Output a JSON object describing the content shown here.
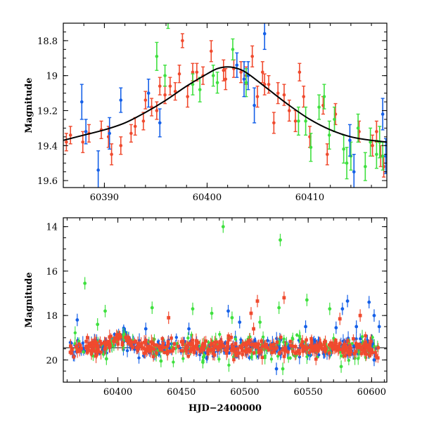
{
  "chart_data": [
    {
      "type": "scatter",
      "panel": "top",
      "title": "",
      "xlabel": "",
      "ylabel": "Magnitude",
      "xlim": [
        60386,
        60417.5
      ],
      "ylim": [
        19.64,
        18.7
      ],
      "y_inverted": true,
      "grid": false,
      "x_ticks": [
        60390,
        60400,
        60410
      ],
      "y_ticks": [
        18.8,
        19,
        19.2,
        19.4,
        19.6
      ],
      "x_tick_labels": [
        "60390",
        "60400",
        "60410"
      ],
      "y_tick_labels": [
        "18.8",
        "19",
        "19.2",
        "19.4",
        "19.6"
      ],
      "colors": {
        "red": "#f04a2e",
        "green": "#3fe03f",
        "blue": "#1560e8",
        "model": "#000000"
      },
      "model_curve": {
        "x": [
          60386,
          60388,
          60390,
          60392,
          60394,
          60396,
          60398,
          60400,
          60401,
          60402,
          60403,
          60404,
          60406,
          60408,
          60410,
          60412,
          60414,
          60416,
          60417.5
        ],
        "y": [
          19.37,
          19.34,
          19.31,
          19.27,
          19.21,
          19.14,
          19.06,
          18.99,
          18.96,
          18.95,
          18.96,
          18.99,
          19.08,
          19.17,
          19.25,
          19.31,
          19.35,
          19.37,
          19.38
        ]
      },
      "series": [
        {
          "color": "red",
          "points": [
            [
              60386.3,
              19.38,
              0.05
            ],
            [
              60386.7,
              19.34,
              0.05
            ],
            [
              60387.9,
              19.38,
              0.06
            ],
            [
              60388.5,
              19.33,
              0.05
            ],
            [
              60389.7,
              19.31,
              0.05
            ],
            [
              60390.4,
              19.35,
              0.06
            ],
            [
              60390.7,
              19.45,
              0.06
            ],
            [
              60391.6,
              19.4,
              0.05
            ],
            [
              60392.6,
              19.33,
              0.05
            ],
            [
              60393.0,
              19.29,
              0.05
            ],
            [
              60393.8,
              19.26,
              0.05
            ],
            [
              60394.0,
              19.14,
              0.05
            ],
            [
              60394.6,
              19.18,
              0.05
            ],
            [
              60395.1,
              19.2,
              0.05
            ],
            [
              60395.4,
              19.06,
              0.05
            ],
            [
              60395.9,
              19.11,
              0.05
            ],
            [
              60396.4,
              19.06,
              0.05
            ],
            [
              60396.9,
              19.09,
              0.05
            ],
            [
              60397.3,
              18.99,
              0.05
            ],
            [
              60397.6,
              18.8,
              0.04
            ],
            [
              60398.1,
              19.12,
              0.06
            ],
            [
              60398.6,
              18.98,
              0.05
            ],
            [
              60399.0,
              18.98,
              0.05
            ],
            [
              60399.6,
              19.0,
              0.05
            ],
            [
              60400.4,
              18.86,
              0.06
            ],
            [
              60401.6,
              18.97,
              0.06
            ],
            [
              60401.8,
              19.02,
              0.06
            ],
            [
              60402.6,
              18.96,
              0.05
            ],
            [
              60403.3,
              18.98,
              0.06
            ],
            [
              60403.8,
              19.0,
              0.05
            ],
            [
              60404.4,
              18.89,
              0.06
            ],
            [
              60404.9,
              19.12,
              0.06
            ],
            [
              60405.4,
              18.98,
              0.06
            ],
            [
              60405.6,
              19.05,
              0.06
            ],
            [
              60406.0,
              19.05,
              0.05
            ],
            [
              60406.5,
              19.27,
              0.06
            ],
            [
              60406.9,
              19.1,
              0.06
            ],
            [
              60407.5,
              19.11,
              0.06
            ],
            [
              60408.0,
              19.2,
              0.06
            ],
            [
              60408.6,
              19.26,
              0.06
            ],
            [
              60409.0,
              18.98,
              0.05
            ],
            [
              60409.4,
              19.12,
              0.06
            ],
            [
              60410.0,
              19.35,
              0.06
            ],
            [
              60411.3,
              19.17,
              0.05
            ],
            [
              60411.7,
              19.45,
              0.06
            ],
            [
              60412.5,
              19.22,
              0.06
            ],
            [
              60414.8,
              19.32,
              0.06
            ],
            [
              60416.1,
              19.4,
              0.06
            ],
            [
              60416.5,
              19.32,
              0.06
            ],
            [
              60416.9,
              19.46,
              0.06
            ],
            [
              60417.2,
              19.52,
              0.06
            ]
          ]
        },
        {
          "color": "green",
          "points": [
            [
              60395.1,
              18.89,
              0.08
            ],
            [
              60395.9,
              19.0,
              0.06
            ],
            [
              60396.2,
              18.68,
              0.05
            ],
            [
              60398.6,
              19.05,
              0.06
            ],
            [
              60399.3,
              19.08,
              0.07
            ],
            [
              60400.6,
              19.0,
              0.06
            ],
            [
              60401.0,
              19.04,
              0.06
            ],
            [
              60402.5,
              18.85,
              0.06
            ],
            [
              60403.8,
              19.04,
              0.08
            ],
            [
              60408.9,
              19.26,
              0.08
            ],
            [
              60409.6,
              19.26,
              0.08
            ],
            [
              60410.1,
              19.41,
              0.08
            ],
            [
              60410.9,
              19.18,
              0.07
            ],
            [
              60411.4,
              19.12,
              0.07
            ],
            [
              60411.9,
              19.34,
              0.08
            ],
            [
              60412.4,
              19.25,
              0.07
            ],
            [
              60413.3,
              19.42,
              0.08
            ],
            [
              60413.6,
              19.5,
              0.09
            ],
            [
              60414.0,
              19.46,
              0.08
            ],
            [
              60414.7,
              19.3,
              0.08
            ],
            [
              60415.4,
              19.52,
              0.08
            ],
            [
              60415.9,
              19.38,
              0.08
            ],
            [
              60416.5,
              19.45,
              0.08
            ],
            [
              60416.8,
              19.38,
              0.09
            ],
            [
              60417.1,
              19.46,
              0.08
            ]
          ]
        },
        {
          "color": "blue",
          "points": [
            [
              60387.8,
              19.15,
              0.1
            ],
            [
              60388.2,
              19.32,
              0.07
            ],
            [
              60389.4,
              19.54,
              0.11
            ],
            [
              60390.5,
              19.33,
              0.09
            ],
            [
              60391.6,
              19.14,
              0.07
            ],
            [
              60394.3,
              19.1,
              0.08
            ],
            [
              60395.4,
              19.27,
              0.08
            ],
            [
              60402.9,
              18.94,
              0.07
            ],
            [
              60403.6,
              19.02,
              0.1
            ],
            [
              60404.0,
              19.0,
              0.08
            ],
            [
              60404.6,
              19.17,
              0.1
            ],
            [
              60405.6,
              18.76,
              0.09
            ],
            [
              60413.9,
              19.37,
              0.09
            ],
            [
              60414.3,
              19.55,
              0.1
            ],
            [
              60417.1,
              19.22,
              0.09
            ],
            [
              60417.4,
              19.46,
              0.1
            ]
          ]
        }
      ]
    },
    {
      "type": "scatter",
      "panel": "bottom",
      "title": "",
      "xlabel": "HJD−2400000",
      "ylabel": "Magnitude",
      "xlim": [
        60357,
        60612
      ],
      "ylim": [
        21.0,
        13.6
      ],
      "y_inverted": true,
      "grid": false,
      "x_ticks": [
        60400,
        60450,
        60500,
        60550,
        60600
      ],
      "y_ticks": [
        14,
        16,
        18,
        20
      ],
      "x_tick_labels": [
        "60400",
        "60450",
        "60500",
        "60550",
        "60600"
      ],
      "y_tick_labels": [
        "14",
        "16",
        "18",
        "20"
      ],
      "reference_line": 19.45,
      "colors": {
        "red": "#f04a2e",
        "green": "#3fe03f",
        "blue": "#1560e8"
      },
      "baseline_band": {
        "center": 19.45,
        "spread": 0.35,
        "x_start": 60362,
        "x_end": 60606
      },
      "outliers": [
        {
          "color": "green",
          "x": 60483,
          "y": 14.0
        },
        {
          "color": "green",
          "x": 60528,
          "y": 14.6
        },
        {
          "color": "green",
          "x": 60374,
          "y": 16.55
        },
        {
          "color": "green",
          "x": 60390,
          "y": 17.8
        },
        {
          "color": "green",
          "x": 60427,
          "y": 17.65
        },
        {
          "color": "green",
          "x": 60459,
          "y": 17.7
        },
        {
          "color": "green",
          "x": 60474,
          "y": 17.9
        },
        {
          "color": "green",
          "x": 60490,
          "y": 18.1
        },
        {
          "color": "green",
          "x": 60527,
          "y": 17.65
        },
        {
          "color": "green",
          "x": 60549,
          "y": 17.3
        },
        {
          "color": "green",
          "x": 60567,
          "y": 17.7
        },
        {
          "color": "green",
          "x": 60384,
          "y": 18.4
        },
        {
          "color": "green",
          "x": 60512,
          "y": 18.3
        },
        {
          "color": "green",
          "x": 60391,
          "y": 19.95
        },
        {
          "color": "green",
          "x": 60434,
          "y": 20.05
        },
        {
          "color": "green",
          "x": 60530,
          "y": 20.4
        },
        {
          "color": "green",
          "x": 60576,
          "y": 20.3
        },
        {
          "color": "green",
          "x": 60467,
          "y": 20.1
        },
        {
          "color": "red",
          "x": 60440,
          "y": 18.1
        },
        {
          "color": "red",
          "x": 60505,
          "y": 17.9
        },
        {
          "color": "red",
          "x": 60510,
          "y": 17.35
        },
        {
          "color": "red",
          "x": 60531,
          "y": 17.2
        },
        {
          "color": "red",
          "x": 60575,
          "y": 18.15
        },
        {
          "color": "red",
          "x": 60591,
          "y": 18.0
        },
        {
          "color": "red",
          "x": 60507,
          "y": 18.6
        },
        {
          "color": "blue",
          "x": 60368,
          "y": 18.2
        },
        {
          "color": "blue",
          "x": 60487,
          "y": 17.8
        },
        {
          "color": "blue",
          "x": 60496,
          "y": 18.3
        },
        {
          "color": "blue",
          "x": 60577,
          "y": 17.7
        },
        {
          "color": "blue",
          "x": 60581,
          "y": 17.35
        },
        {
          "color": "blue",
          "x": 60598,
          "y": 17.4
        },
        {
          "color": "blue",
          "x": 60602,
          "y": 18.0
        },
        {
          "color": "blue",
          "x": 60606,
          "y": 18.5
        },
        {
          "color": "blue",
          "x": 60588,
          "y": 18.5
        },
        {
          "color": "blue",
          "x": 60422,
          "y": 18.6
        },
        {
          "color": "blue",
          "x": 60456,
          "y": 18.6
        },
        {
          "color": "blue",
          "x": 60548,
          "y": 18.5
        },
        {
          "color": "blue",
          "x": 60572,
          "y": 18.55
        },
        {
          "color": "blue",
          "x": 60602,
          "y": 20.0
        },
        {
          "color": "blue",
          "x": 60525,
          "y": 20.4
        }
      ]
    }
  ]
}
